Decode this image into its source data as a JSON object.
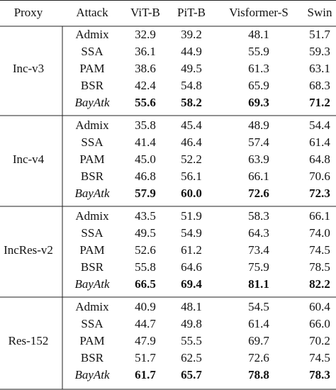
{
  "table": {
    "header": [
      "Proxy",
      "Attack",
      "ViT-B",
      "PiT-B",
      "Visformer-S",
      "Swin"
    ],
    "groups": [
      {
        "proxy": "Inc-v3",
        "rows": [
          [
            "Admix",
            "32.9",
            "39.2",
            "48.1",
            "51.7"
          ],
          [
            "SSA",
            "36.1",
            "44.9",
            "55.9",
            "59.3"
          ],
          [
            "PAM",
            "38.6",
            "49.5",
            "61.3",
            "63.1"
          ],
          [
            "BSR",
            "42.4",
            "54.8",
            "65.9",
            "68.3"
          ],
          [
            "BayAtk",
            "55.6",
            "58.2",
            "69.3",
            "71.2"
          ]
        ]
      },
      {
        "proxy": "Inc-v4",
        "rows": [
          [
            "Admix",
            "35.8",
            "45.4",
            "48.9",
            "54.4"
          ],
          [
            "SSA",
            "41.4",
            "46.4",
            "57.4",
            "61.4"
          ],
          [
            "PAM",
            "45.0",
            "52.2",
            "63.9",
            "64.8"
          ],
          [
            "BSR",
            "46.8",
            "56.1",
            "66.1",
            "70.6"
          ],
          [
            "BayAtk",
            "57.9",
            "60.0",
            "72.6",
            "72.3"
          ]
        ]
      },
      {
        "proxy": "IncRes-v2",
        "rows": [
          [
            "Admix",
            "43.5",
            "51.9",
            "58.3",
            "66.1"
          ],
          [
            "SSA",
            "49.5",
            "54.9",
            "64.3",
            "74.0"
          ],
          [
            "PAM",
            "52.6",
            "61.2",
            "73.4",
            "74.5"
          ],
          [
            "BSR",
            "55.8",
            "64.6",
            "75.9",
            "78.5"
          ],
          [
            "BayAtk",
            "66.5",
            "69.4",
            "81.1",
            "82.2"
          ]
        ]
      },
      {
        "proxy": "Res-152",
        "rows": [
          [
            "Admix",
            "40.9",
            "48.1",
            "54.5",
            "60.4"
          ],
          [
            "SSA",
            "44.7",
            "49.8",
            "61.4",
            "66.0"
          ],
          [
            "PAM",
            "47.9",
            "55.5",
            "69.7",
            "70.2"
          ],
          [
            "BSR",
            "51.7",
            "62.5",
            "72.6",
            "74.5"
          ],
          [
            "BayAtk",
            "61.7",
            "65.7",
            "78.8",
            "78.3"
          ]
        ]
      }
    ]
  }
}
